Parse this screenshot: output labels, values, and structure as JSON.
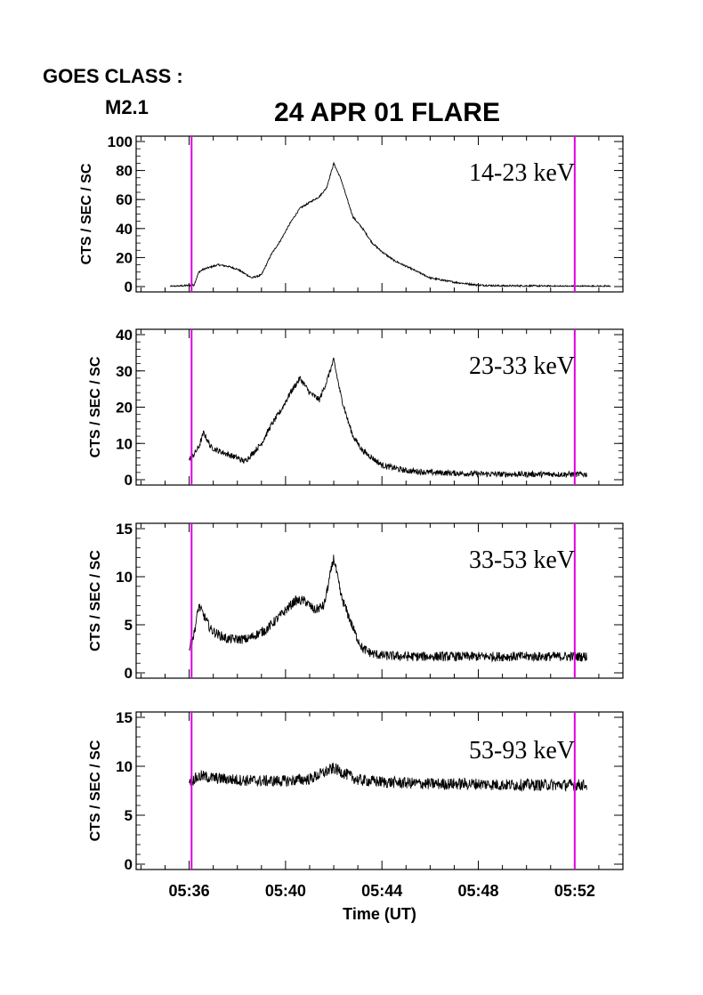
{
  "header": {
    "goes_label": "GOES CLASS :",
    "goes_class": "M2.1",
    "title": "24 APR 01 FLARE"
  },
  "colors": {
    "marker": "#e000e0",
    "trace": "#000000",
    "axis": "#000000"
  },
  "chart_data": [
    {
      "type": "line",
      "band": "14-23 keV",
      "ylabel": "CTS / SEC / SC",
      "ylim": [
        0,
        100
      ],
      "yticks": [
        0,
        20,
        40,
        60,
        80,
        100
      ],
      "x_minutes": [
        -0.8,
        0.2,
        0.4,
        0.6,
        0.8,
        1.2,
        1.6,
        2.0,
        2.3,
        2.6,
        3.0,
        3.4,
        3.8,
        4.2,
        4.6,
        5.0,
        5.4,
        5.7,
        6.0,
        6.3,
        6.6,
        6.8,
        7.2,
        7.6,
        8.0,
        8.5,
        9.0,
        9.5,
        10.0,
        11.0,
        12.0,
        13.0,
        14.0,
        15.0,
        16.0,
        17.0,
        17.5
      ],
      "y": [
        0,
        1,
        10,
        12,
        13,
        15,
        14,
        12,
        9,
        6,
        8,
        22,
        32,
        44,
        54,
        58,
        62,
        68,
        85,
        74,
        58,
        48,
        40,
        30,
        24,
        18,
        14,
        10,
        6,
        3,
        1,
        0.5,
        0.5,
        0.3,
        0.2,
        0.2,
        0.2
      ]
    },
    {
      "type": "line",
      "band": "23-33 keV",
      "ylabel": "CTS / SEC / SC",
      "ylim": [
        0,
        40
      ],
      "yticks": [
        0,
        10,
        20,
        30,
        40
      ],
      "x_minutes": [
        0.0,
        0.2,
        0.4,
        0.6,
        0.9,
        1.2,
        1.6,
        2.0,
        2.3,
        2.6,
        3.0,
        3.4,
        3.8,
        4.2,
        4.6,
        5.0,
        5.4,
        5.7,
        6.0,
        6.3,
        6.6,
        6.8,
        7.2,
        7.6,
        8.0,
        9.0,
        10.0,
        11.0,
        12.0,
        13.0,
        14.0,
        15.0,
        16.0,
        16.5
      ],
      "y": [
        5.5,
        7,
        9,
        13,
        9,
        8,
        7,
        6,
        5,
        7,
        10,
        15,
        19,
        24,
        28,
        24,
        22,
        27,
        33,
        23,
        16,
        12,
        8,
        6,
        4,
        2.5,
        2,
        1.8,
        1.6,
        1.5,
        1.5,
        1.5,
        1.5,
        1.5
      ],
      "noise": 0.8
    },
    {
      "type": "line",
      "band": "33-53 keV",
      "ylabel": "CTS / SEC / SC",
      "ylim": [
        0,
        15
      ],
      "yticks": [
        0,
        5,
        10,
        15
      ],
      "x_minutes": [
        0.0,
        0.2,
        0.4,
        0.6,
        0.9,
        1.2,
        1.6,
        2.0,
        2.4,
        2.8,
        3.2,
        3.6,
        4.0,
        4.4,
        4.8,
        5.2,
        5.6,
        6.0,
        6.3,
        6.6,
        6.9,
        7.2,
        7.6,
        8.0,
        9.0,
        10.0,
        11.0,
        12.0,
        13.0,
        14.0,
        15.0,
        16.0,
        16.5
      ],
      "y": [
        2.5,
        4,
        7,
        6,
        4.5,
        4,
        3.5,
        3.5,
        3.5,
        4,
        4.5,
        5.5,
        6.5,
        7.5,
        7.5,
        6.5,
        7,
        12,
        8,
        6,
        4,
        2.5,
        2,
        1.8,
        1.7,
        1.7,
        1.7,
        1.7,
        1.7,
        1.7,
        1.7,
        1.7,
        1.7
      ],
      "noise": 0.5
    },
    {
      "type": "line",
      "band": "53-93 keV",
      "ylabel": "CTS / SEC / SC",
      "ylim": [
        0,
        15
      ],
      "yticks": [
        0,
        5,
        10,
        15
      ],
      "x_minutes": [
        0.0,
        0.5,
        1.0,
        2.0,
        3.0,
        4.0,
        5.0,
        6.0,
        6.5,
        7.0,
        8.0,
        9.0,
        10.0,
        11.0,
        12.0,
        13.0,
        14.0,
        15.0,
        16.0,
        16.5
      ],
      "y": [
        8.5,
        9,
        8.8,
        8.6,
        8.5,
        8.5,
        8.7,
        9.8,
        9.2,
        8.6,
        8.4,
        8.3,
        8.2,
        8.2,
        8.2,
        8.1,
        8.1,
        8.1,
        8.1,
        8.1
      ],
      "noise": 0.6
    }
  ],
  "x_axis": {
    "label": "Time (UT)",
    "ticks": [
      "05:36",
      "05:40",
      "05:44",
      "05:48",
      "05:52"
    ],
    "tick_minutes": [
      0,
      4,
      8,
      12,
      16
    ],
    "range_minutes": [
      -2.2,
      18.0
    ],
    "marker_minutes": [
      0.1,
      16.0
    ]
  }
}
